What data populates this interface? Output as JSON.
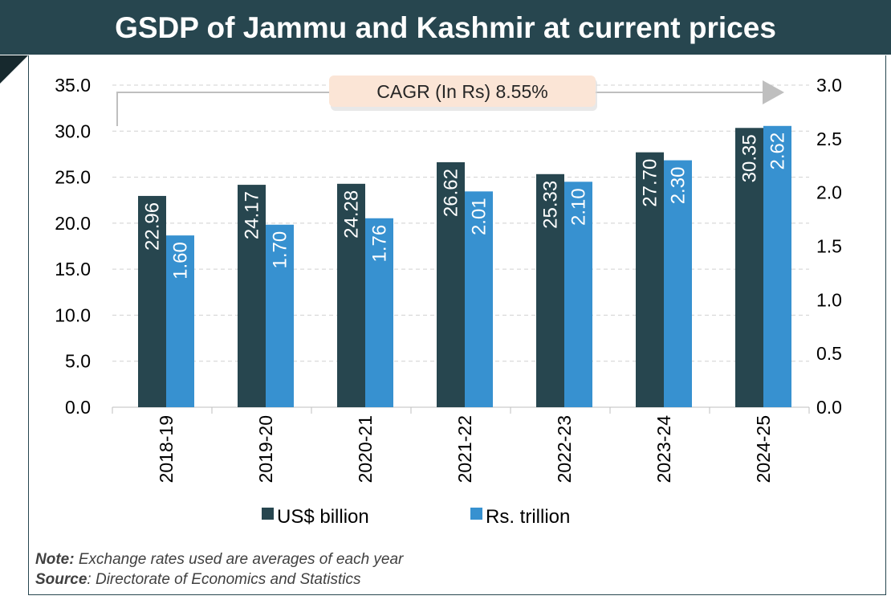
{
  "title": "GSDP of Jammu and Kashmir at current prices",
  "note_label": "Note:",
  "note_text": " Exchange rates used are averages of each year",
  "source_label": "Source",
  "source_text": ": Directorate of Economics and Statistics",
  "chart_data": {
    "type": "bar",
    "title": "GSDP of Jammu and Kashmir at current prices",
    "categories": [
      "2018-19",
      "2019-20",
      "2020-21",
      "2021-22",
      "2022-23",
      "2023-24",
      "2024-25"
    ],
    "series": [
      {
        "name": "US$ billion",
        "axis": "left",
        "color": "#27464f",
        "values": [
          22.96,
          24.17,
          24.28,
          26.62,
          25.33,
          27.7,
          30.35
        ],
        "labels": [
          "22.96",
          "24.17",
          "24.28",
          "26.62",
          "25.33",
          "27.70",
          "30.35"
        ]
      },
      {
        "name": "Rs. trillion",
        "axis": "right",
        "color": "#3791d0",
        "values": [
          1.6,
          1.7,
          1.76,
          2.01,
          2.1,
          2.3,
          2.62
        ],
        "labels": [
          "1.60",
          "1.70",
          "1.76",
          "2.01",
          "2.10",
          "2.30",
          "2.62"
        ]
      }
    ],
    "y_left": {
      "range": [
        0,
        35
      ],
      "ticks": [
        "0.0",
        "5.0",
        "10.0",
        "15.0",
        "20.0",
        "25.0",
        "30.0",
        "35.0"
      ]
    },
    "y_right": {
      "range": [
        0,
        3
      ],
      "ticks": [
        "0.0",
        "0.5",
        "1.0",
        "1.5",
        "2.0",
        "2.5",
        "3.0"
      ]
    },
    "grid": true,
    "legend": "bottom",
    "annotation": "CAGR (In Rs) 8.55%"
  }
}
